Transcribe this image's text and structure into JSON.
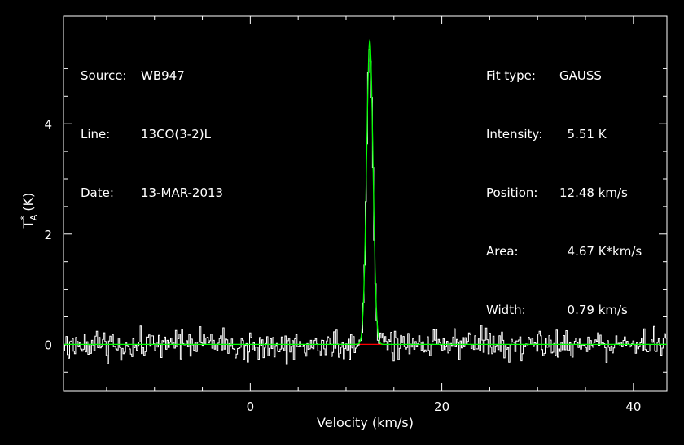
{
  "chart_data": {
    "type": "line",
    "title": "",
    "xlabel": "Velocity (km/s)",
    "ylabel": "T",
    "ylabel_sub": "A",
    "ylabel_sup": "*",
    "ylabel_unit": "(K)",
    "xlim": [
      -19.5,
      43.5
    ],
    "ylim": [
      -0.85,
      5.95
    ],
    "xticks": [
      0,
      20,
      40
    ],
    "xtick_labels": [
      "0",
      "20",
      "40"
    ],
    "yticks": [
      0,
      2,
      4
    ],
    "ytick_labels": [
      "0",
      "2",
      "4"
    ],
    "grid": false,
    "legend": "none",
    "colors": {
      "data": "#ffffff",
      "fit": "#00ff00",
      "baseline": "#ff0000",
      "axes": "#ffffff"
    },
    "series": [
      {
        "kind": "histogram",
        "x_start": -19.5,
        "x_step": 0.127,
        "noise_rms": 0.13,
        "peak": {
          "center": 12.48,
          "amplitude": 5.51,
          "fwhm": 0.79
        }
      },
      {
        "kind": "gaussian-fit",
        "center": 12.48,
        "amplitude": 5.51,
        "fwhm": 0.79
      }
    ],
    "annotations_left": [
      {
        "label": "Source:",
        "value": "WB947"
      },
      {
        "label": "Line:",
        "value": "13CO(3-2)L"
      },
      {
        "label": "Date:",
        "value": "13-MAR-2013"
      }
    ],
    "annotations_right": [
      {
        "label": "Fit type:",
        "value": "GAUSS"
      },
      {
        "label": "Intensity:",
        "value": "  5.51 K"
      },
      {
        "label": "Position:",
        "value": "12.48 km/s"
      },
      {
        "label": "Area:",
        "value": "  4.67 K*km/s"
      },
      {
        "label": "Width:",
        "value": "  0.79 km/s"
      }
    ]
  }
}
